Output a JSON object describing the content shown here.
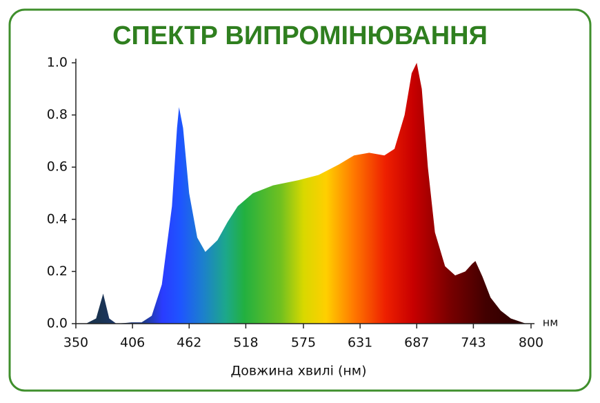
{
  "chart_data": {
    "type": "area",
    "title": "СПЕКТР ВИПРОМІНЮВАННЯ",
    "x_label": "Довжина хвилі (нм)",
    "x_unit": "нм",
    "x": [
      350,
      360,
      370,
      377,
      383,
      390,
      400,
      405,
      415,
      425,
      435,
      445,
      450,
      452,
      456,
      462,
      470,
      478,
      490,
      500,
      510,
      525,
      545,
      570,
      590,
      610,
      625,
      640,
      655,
      665,
      675,
      682,
      687,
      692,
      698,
      705,
      715,
      725,
      735,
      742,
      745,
      752,
      760,
      770,
      780,
      795,
      800
    ],
    "values": [
      0,
      0,
      0.02,
      0.115,
      0.02,
      0,
      0.003,
      0.005,
      0.005,
      0.03,
      0.15,
      0.45,
      0.75,
      0.83,
      0.75,
      0.5,
      0.33,
      0.275,
      0.32,
      0.39,
      0.45,
      0.5,
      0.53,
      0.55,
      0.57,
      0.61,
      0.645,
      0.655,
      0.645,
      0.67,
      0.8,
      0.96,
      1.0,
      0.9,
      0.6,
      0.35,
      0.22,
      0.185,
      0.2,
      0.23,
      0.24,
      0.18,
      0.1,
      0.05,
      0.02,
      0,
      0
    ],
    "xlim": [
      350,
      800
    ],
    "xticks": [
      350,
      406,
      462,
      518,
      575,
      631,
      687,
      743,
      800
    ],
    "ylim": [
      0,
      1
    ],
    "yticks": [
      {
        "value": 0,
        "label": "0.0"
      },
      0.2,
      0.4,
      0.6,
      0.8,
      {
        "value": 1,
        "label": "1.0"
      }
    ]
  }
}
